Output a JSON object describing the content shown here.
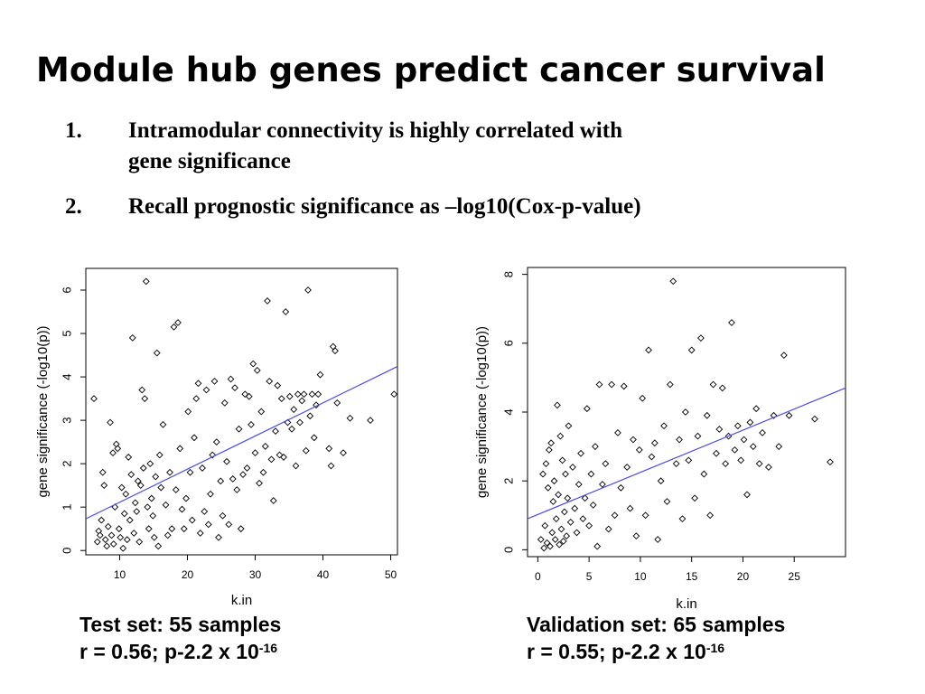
{
  "title": "Module hub genes predict cancer survival",
  "bullets": [
    {
      "number": "1.",
      "lines": [
        "Intramodular connectivity is highly correlated with",
        "gene significance"
      ]
    },
    {
      "number": "2.",
      "lines": [
        "Recall prognostic significance as –log10(Cox-p-value)"
      ]
    }
  ],
  "captions": [
    {
      "line1": "Test set: 55 samples",
      "line2_prefix": "r = 0.56; p-2.2 x 10",
      "line2_exp": "-16"
    },
    {
      "line1": "Validation set: 65 samples",
      "line2_prefix": "r = 0.55; p-2.2 x 10",
      "line2_exp": "-16"
    }
  ],
  "chart_data": [
    {
      "type": "scatter",
      "xlabel": "k.in",
      "ylabel": "gene significance (-log10(p))",
      "xlim": [
        5,
        51
      ],
      "ylim": [
        -0.1,
        6.5
      ],
      "xticks": [
        10,
        20,
        30,
        40,
        50
      ],
      "yticks": [
        0,
        1,
        2,
        3,
        4,
        5,
        6
      ],
      "fit_line": {
        "x": [
          5,
          51
        ],
        "y": [
          0.73,
          4.24
        ],
        "color": "#4a4adc"
      },
      "points": [
        [
          6.2,
          3.5
        ],
        [
          6.7,
          0.2
        ],
        [
          6.9,
          0.45
        ],
        [
          7.1,
          0.35
        ],
        [
          7.3,
          0.7
        ],
        [
          7.5,
          1.8
        ],
        [
          7.7,
          1.5
        ],
        [
          7.9,
          0.25
        ],
        [
          8.1,
          0.1
        ],
        [
          8.3,
          0.55
        ],
        [
          8.6,
          2.95
        ],
        [
          8.8,
          0.35
        ],
        [
          9.0,
          2.25
        ],
        [
          9.1,
          0.15
        ],
        [
          9.3,
          1.0
        ],
        [
          9.5,
          2.45
        ],
        [
          9.7,
          2.35
        ],
        [
          9.9,
          0.5
        ],
        [
          10.1,
          0.3
        ],
        [
          10.3,
          1.45
        ],
        [
          10.5,
          0.05
        ],
        [
          10.7,
          0.85
        ],
        [
          10.9,
          1.3
        ],
        [
          11.1,
          0.25
        ],
        [
          11.3,
          2.15
        ],
        [
          11.5,
          0.7
        ],
        [
          11.7,
          1.75
        ],
        [
          11.9,
          4.9
        ],
        [
          12.1,
          0.4
        ],
        [
          12.3,
          1.1
        ],
        [
          12.5,
          0.9
        ],
        [
          12.7,
          1.6
        ],
        [
          12.9,
          0.2
        ],
        [
          13.1,
          1.5
        ],
        [
          13.3,
          3.7
        ],
        [
          13.5,
          1.9
        ],
        [
          13.7,
          3.5
        ],
        [
          13.9,
          6.2
        ],
        [
          14.1,
          1.0
        ],
        [
          14.3,
          0.5
        ],
        [
          14.5,
          2.0
        ],
        [
          14.7,
          1.2
        ],
        [
          14.9,
          0.8
        ],
        [
          15.1,
          0.3
        ],
        [
          15.3,
          1.7
        ],
        [
          15.5,
          4.55
        ],
        [
          15.7,
          0.1
        ],
        [
          15.9,
          2.2
        ],
        [
          16.1,
          1.45
        ],
        [
          16.4,
          2.9
        ],
        [
          16.8,
          1.05
        ],
        [
          17.1,
          0.35
        ],
        [
          17.4,
          1.8
        ],
        [
          17.7,
          0.5
        ],
        [
          18.0,
          5.15
        ],
        [
          18.3,
          1.4
        ],
        [
          18.6,
          5.25
        ],
        [
          18.9,
          2.35
        ],
        [
          19.2,
          0.95
        ],
        [
          19.5,
          0.5
        ],
        [
          19.8,
          1.2
        ],
        [
          20.1,
          3.2
        ],
        [
          20.4,
          1.8
        ],
        [
          20.7,
          0.7
        ],
        [
          21.0,
          2.6
        ],
        [
          21.3,
          3.5
        ],
        [
          21.6,
          3.85
        ],
        [
          21.9,
          0.4
        ],
        [
          22.2,
          1.9
        ],
        [
          22.5,
          0.9
        ],
        [
          22.8,
          3.7
        ],
        [
          23.1,
          0.6
        ],
        [
          23.4,
          1.3
        ],
        [
          23.7,
          2.2
        ],
        [
          24.0,
          3.9
        ],
        [
          24.3,
          2.5
        ],
        [
          24.6,
          0.3
        ],
        [
          24.9,
          1.6
        ],
        [
          25.2,
          0.8
        ],
        [
          25.5,
          3.4
        ],
        [
          25.8,
          2.05
        ],
        [
          26.1,
          0.6
        ],
        [
          26.4,
          3.95
        ],
        [
          26.7,
          1.65
        ],
        [
          27.0,
          3.75
        ],
        [
          27.3,
          1.4
        ],
        [
          27.6,
          2.8
        ],
        [
          27.9,
          0.5
        ],
        [
          28.2,
          1.75
        ],
        [
          28.5,
          3.6
        ],
        [
          28.8,
          1.9
        ],
        [
          29.1,
          3.55
        ],
        [
          29.4,
          2.9
        ],
        [
          29.7,
          4.3
        ],
        [
          30.0,
          2.25
        ],
        [
          30.3,
          4.15
        ],
        [
          30.6,
          1.55
        ],
        [
          30.9,
          3.2
        ],
        [
          31.2,
          1.8
        ],
        [
          31.5,
          2.4
        ],
        [
          31.8,
          5.75
        ],
        [
          32.1,
          3.9
        ],
        [
          32.4,
          2.1
        ],
        [
          32.7,
          1.15
        ],
        [
          33.0,
          2.75
        ],
        [
          33.3,
          3.8
        ],
        [
          33.6,
          2.2
        ],
        [
          33.9,
          3.5
        ],
        [
          34.2,
          2.15
        ],
        [
          34.5,
          5.5
        ],
        [
          34.8,
          2.95
        ],
        [
          35.1,
          3.55
        ],
        [
          35.4,
          2.8
        ],
        [
          35.7,
          3.25
        ],
        [
          36.0,
          1.95
        ],
        [
          36.3,
          3.6
        ],
        [
          36.6,
          2.95
        ],
        [
          36.9,
          3.45
        ],
        [
          37.2,
          3.6
        ],
        [
          37.5,
          2.3
        ],
        [
          37.8,
          6.0
        ],
        [
          38.1,
          3.1
        ],
        [
          38.4,
          3.6
        ],
        [
          38.7,
          2.6
        ],
        [
          39.0,
          3.35
        ],
        [
          39.3,
          3.6
        ],
        [
          39.6,
          4.05
        ],
        [
          40.9,
          2.35
        ],
        [
          41.2,
          1.95
        ],
        [
          41.5,
          4.7
        ],
        [
          41.8,
          4.6
        ],
        [
          42.1,
          3.4
        ],
        [
          43.0,
          2.25
        ],
        [
          44.0,
          3.05
        ],
        [
          47.0,
          3.0
        ],
        [
          50.5,
          3.6
        ]
      ]
    },
    {
      "type": "scatter",
      "xlabel": "k.in",
      "ylabel": "gene significance (-log10(p))",
      "xlim": [
        -1,
        30
      ],
      "ylim": [
        -0.2,
        8.2
      ],
      "xticks": [
        0,
        5,
        10,
        15,
        20,
        25
      ],
      "yticks": [
        0,
        2,
        4,
        6,
        8
      ],
      "fit_line": {
        "x": [
          -1,
          30
        ],
        "y": [
          0.9,
          4.7
        ],
        "color": "#4a4adc"
      },
      "points": [
        [
          0.3,
          0.3
        ],
        [
          0.5,
          2.2
        ],
        [
          0.6,
          0.05
        ],
        [
          0.7,
          0.7
        ],
        [
          0.8,
          2.5
        ],
        [
          0.9,
          0.2
        ],
        [
          1.0,
          1.8
        ],
        [
          1.1,
          2.9
        ],
        [
          1.2,
          0.1
        ],
        [
          1.3,
          3.1
        ],
        [
          1.4,
          0.5
        ],
        [
          1.5,
          1.4
        ],
        [
          1.6,
          2.0
        ],
        [
          1.7,
          0.3
        ],
        [
          1.8,
          0.9
        ],
        [
          1.9,
          4.2
        ],
        [
          2.0,
          1.6
        ],
        [
          2.1,
          0.15
        ],
        [
          2.2,
          3.3
        ],
        [
          2.3,
          0.6
        ],
        [
          2.4,
          2.6
        ],
        [
          2.5,
          0.25
        ],
        [
          2.6,
          1.1
        ],
        [
          2.7,
          2.2
        ],
        [
          2.8,
          0.4
        ],
        [
          2.9,
          1.5
        ],
        [
          3.0,
          3.6
        ],
        [
          3.2,
          0.8
        ],
        [
          3.4,
          2.4
        ],
        [
          3.6,
          1.2
        ],
        [
          3.8,
          0.5
        ],
        [
          4.0,
          1.9
        ],
        [
          4.2,
          2.8
        ],
        [
          4.4,
          0.9
        ],
        [
          4.6,
          1.5
        ],
        [
          4.8,
          4.1
        ],
        [
          5.0,
          0.7
        ],
        [
          5.2,
          2.2
        ],
        [
          5.4,
          1.3
        ],
        [
          5.6,
          3.0
        ],
        [
          5.8,
          0.1
        ],
        [
          6.0,
          4.8
        ],
        [
          6.3,
          1.9
        ],
        [
          6.6,
          2.5
        ],
        [
          6.9,
          0.6
        ],
        [
          7.2,
          4.8
        ],
        [
          7.5,
          1.0
        ],
        [
          7.8,
          3.4
        ],
        [
          8.1,
          1.8
        ],
        [
          8.4,
          4.75
        ],
        [
          8.7,
          2.4
        ],
        [
          9.0,
          1.2
        ],
        [
          9.3,
          3.2
        ],
        [
          9.6,
          0.4
        ],
        [
          9.9,
          2.9
        ],
        [
          10.2,
          4.4
        ],
        [
          10.5,
          1.0
        ],
        [
          10.8,
          5.8
        ],
        [
          11.1,
          2.7
        ],
        [
          11.4,
          3.1
        ],
        [
          11.7,
          0.3
        ],
        [
          12.0,
          2.0
        ],
        [
          12.3,
          3.6
        ],
        [
          12.6,
          1.4
        ],
        [
          12.9,
          4.8
        ],
        [
          13.2,
          7.8
        ],
        [
          13.5,
          2.5
        ],
        [
          13.8,
          3.2
        ],
        [
          14.1,
          0.9
        ],
        [
          14.4,
          4.0
        ],
        [
          14.7,
          2.6
        ],
        [
          15.0,
          5.8
        ],
        [
          15.3,
          1.5
        ],
        [
          15.6,
          3.3
        ],
        [
          15.9,
          6.15
        ],
        [
          16.2,
          2.2
        ],
        [
          16.5,
          3.9
        ],
        [
          16.8,
          1.0
        ],
        [
          17.1,
          4.8
        ],
        [
          17.4,
          2.8
        ],
        [
          17.7,
          3.5
        ],
        [
          18.0,
          4.7
        ],
        [
          18.3,
          2.5
        ],
        [
          18.6,
          3.3
        ],
        [
          18.9,
          6.6
        ],
        [
          19.2,
          2.9
        ],
        [
          19.5,
          3.6
        ],
        [
          19.8,
          2.6
        ],
        [
          20.1,
          3.2
        ],
        [
          20.4,
          1.6
        ],
        [
          20.7,
          3.7
        ],
        [
          21.0,
          3.0
        ],
        [
          21.3,
          4.1
        ],
        [
          21.6,
          2.5
        ],
        [
          21.9,
          3.4
        ],
        [
          22.5,
          2.4
        ],
        [
          23.0,
          3.9
        ],
        [
          23.5,
          3.0
        ],
        [
          24.0,
          5.65
        ],
        [
          24.5,
          3.9
        ],
        [
          27.0,
          3.8
        ],
        [
          28.5,
          2.55
        ]
      ]
    }
  ]
}
